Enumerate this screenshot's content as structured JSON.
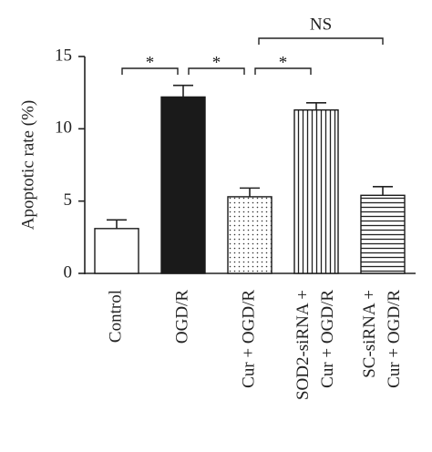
{
  "chart_data": {
    "type": "bar",
    "y_label": "Apoptotic rate (%)",
    "categories": [
      [
        "Control"
      ],
      [
        "OGD/R"
      ],
      [
        "Cur + OGD/R"
      ],
      [
        "SOD2-siRNA +",
        "Cur + OGD/R"
      ],
      [
        "SC-siRNA +",
        "Cur + OGD/R"
      ]
    ],
    "values": [
      3.1,
      12.2,
      5.3,
      11.3,
      5.4
    ],
    "errors": [
      0.6,
      0.8,
      0.6,
      0.5,
      0.6
    ],
    "patterns": [
      "none",
      "solid",
      "dots",
      "vlines",
      "hlines"
    ],
    "color": "#1a1a1a",
    "ylim": [
      0,
      15
    ],
    "yticks": [
      0,
      5,
      10,
      15
    ],
    "annotations": [
      {
        "from": 0,
        "to": 1,
        "label": "*"
      },
      {
        "from": 1,
        "to": 2,
        "label": "*"
      },
      {
        "from": 2,
        "to": 3,
        "label": "*"
      },
      {
        "from": 2,
        "to": 4,
        "label": "NS"
      }
    ]
  }
}
